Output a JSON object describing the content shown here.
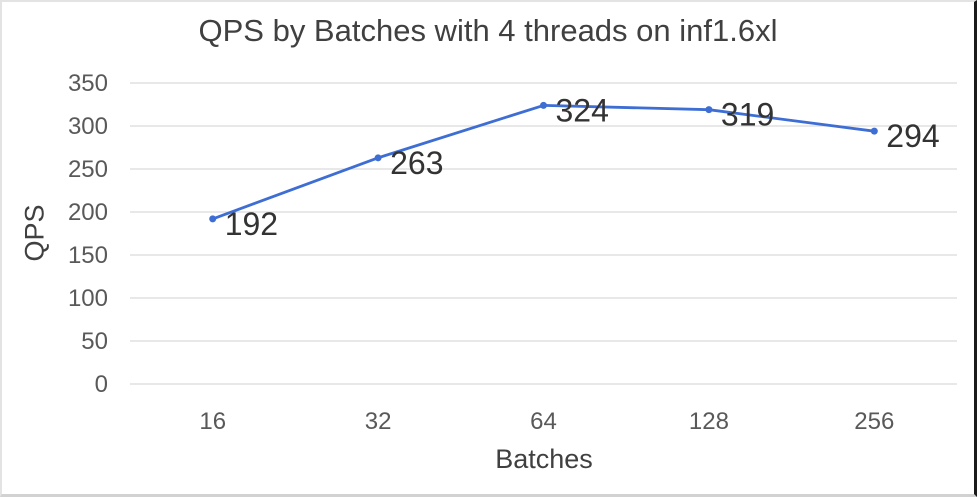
{
  "chart_data": {
    "type": "line",
    "title": "QPS by Batches with 4 threads on inf1.6xl",
    "xlabel": "Batches",
    "ylabel": "QPS",
    "categories": [
      "16",
      "32",
      "64",
      "128",
      "256"
    ],
    "series": [
      {
        "name": "QPS",
        "values": [
          192,
          263,
          324,
          319,
          294
        ]
      }
    ],
    "data_labels": [
      "192",
      "263",
      "324",
      "319",
      "294"
    ],
    "ylim": [
      0,
      350
    ],
    "yticks": [
      0,
      50,
      100,
      150,
      200,
      250,
      300,
      350
    ],
    "grid": true,
    "legend": "none",
    "line_color": "#3E6ED3",
    "marker": "circle",
    "gridline_color": "#D9D9D9",
    "tick_label_color": "#595959",
    "title_color": "#404040",
    "axis_title_color": "#404040",
    "data_label_color": "#333333"
  }
}
